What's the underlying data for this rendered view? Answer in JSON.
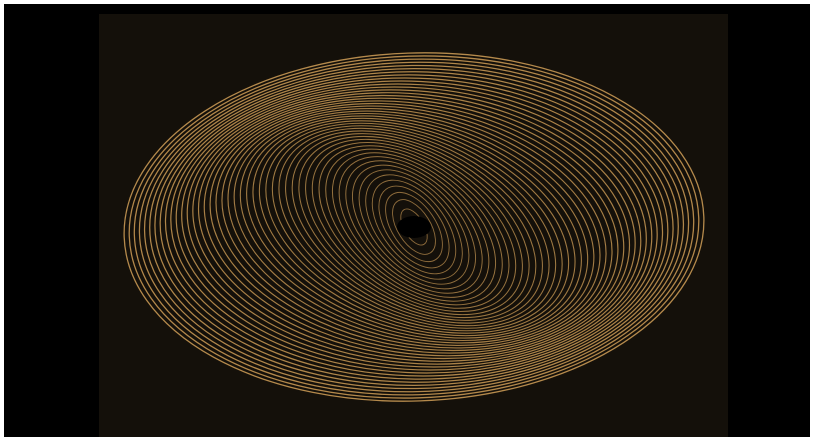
{
  "artwork": {
    "subject": "concentric-ellipse-spiral",
    "colors": {
      "outer_background": "#000000",
      "canvas_background": "#14100a",
      "stroke": "#b58a4c",
      "center": "#000000"
    },
    "ring_count": 46
  }
}
